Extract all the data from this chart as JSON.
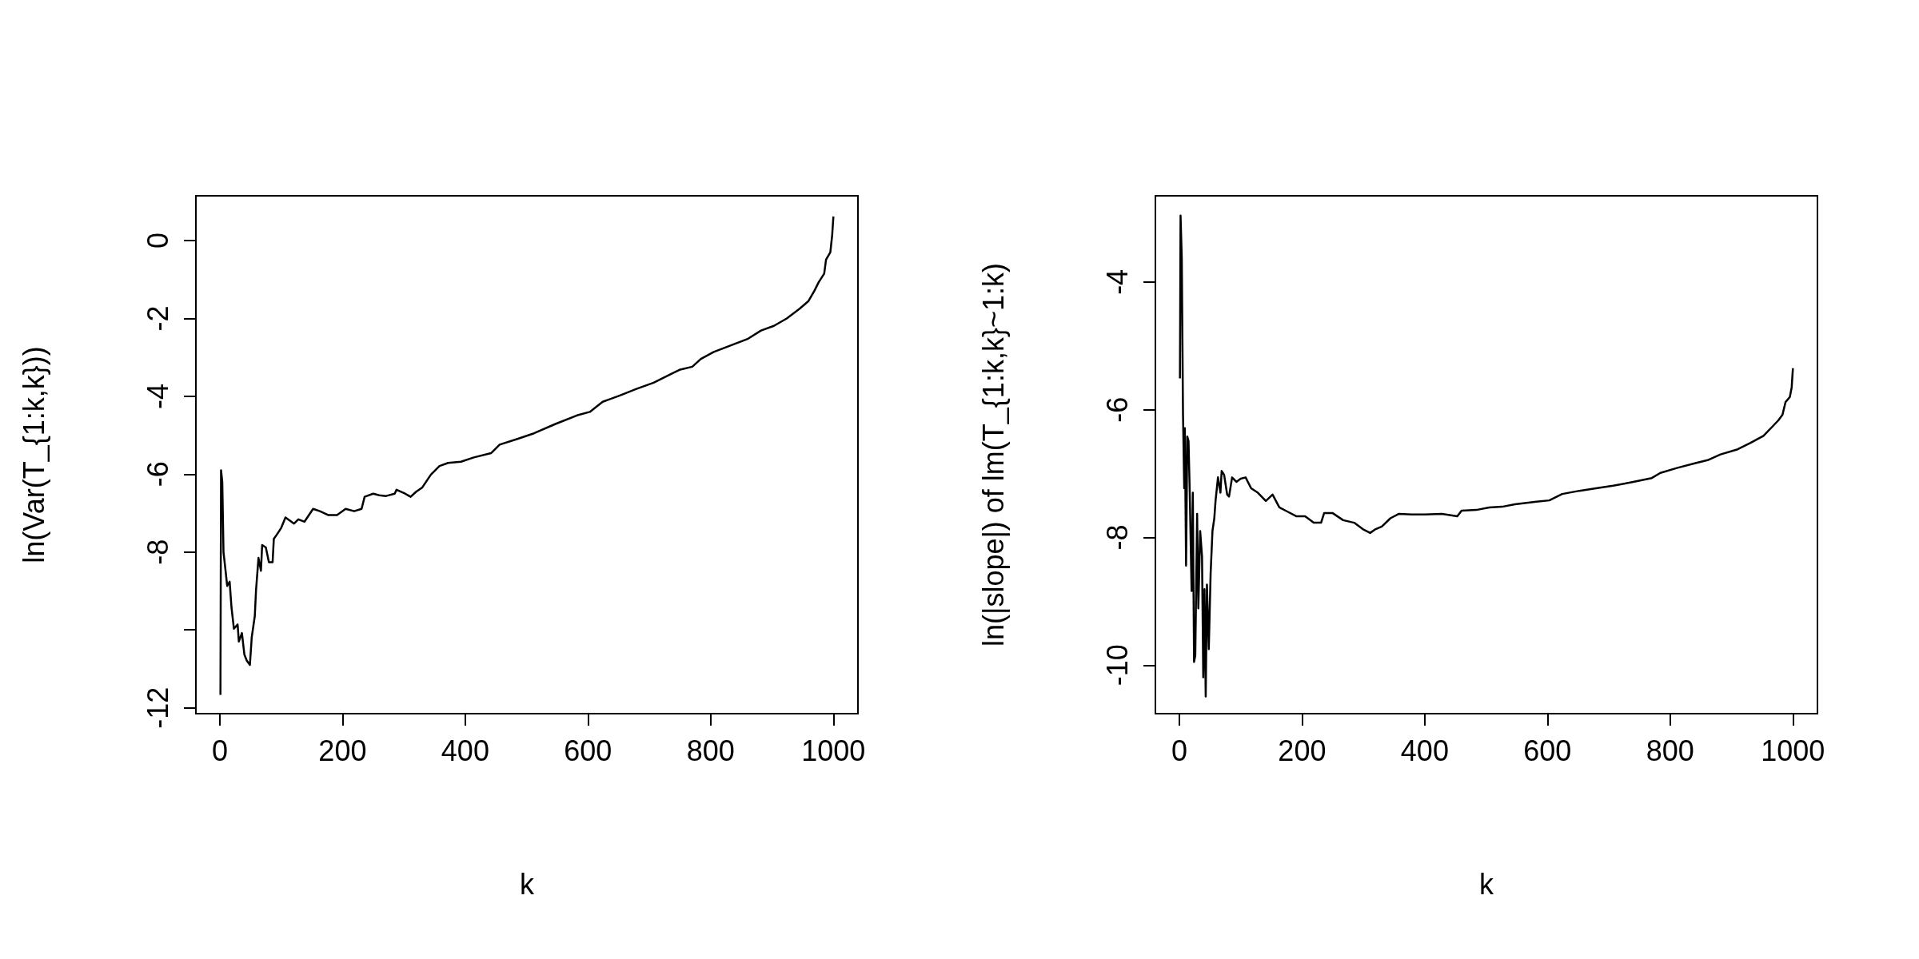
{
  "chart_data": [
    {
      "type": "line",
      "xlabel": "k",
      "ylabel": "ln(Var(T_{1:k,k}))",
      "color": "#000000",
      "grid": false,
      "xlim": [
        -39,
        1040
      ],
      "ylim": [
        -12.15,
        1.15
      ],
      "xticks": [
        0,
        200,
        400,
        600,
        800,
        1000
      ],
      "yticks": [
        0,
        -2,
        -4,
        -6,
        -8,
        {
          "value": -10,
          "label": null
        },
        -12
      ],
      "x": [
        1,
        2,
        4,
        6,
        9,
        12,
        16,
        19,
        23,
        29,
        31,
        36,
        40,
        44,
        49,
        52,
        57,
        59,
        63,
        67,
        69,
        75,
        80,
        86,
        88,
        93,
        100,
        107,
        121,
        128,
        138,
        152,
        163,
        177,
        191,
        205,
        219,
        231,
        236,
        250,
        260,
        271,
        285,
        288,
        302,
        311,
        320,
        330,
        344,
        358,
        372,
        393,
        414,
        442,
        456,
        484,
        512,
        547,
        582,
        603,
        624,
        652,
        679,
        707,
        735,
        749,
        770,
        784,
        805,
        833,
        861,
        882,
        903,
        924,
        945,
        959,
        969,
        976,
        985,
        988,
        995,
        998,
        1000
      ],
      "values": [
        -11.67,
        -5.9,
        -6.2,
        -8.0,
        -8.43,
        -8.87,
        -8.76,
        -9.42,
        -9.97,
        -9.86,
        -10.3,
        -10.08,
        -10.63,
        -10.79,
        -10.9,
        -10.19,
        -9.64,
        -8.98,
        -8.15,
        -8.48,
        -7.82,
        -7.88,
        -8.26,
        -8.26,
        -7.66,
        -7.55,
        -7.38,
        -7.11,
        -7.27,
        -7.16,
        -7.22,
        -6.89,
        -6.95,
        -7.05,
        -7.05,
        -6.89,
        -6.95,
        -6.89,
        -6.58,
        -6.5,
        -6.54,
        -6.56,
        -6.5,
        -6.4,
        -6.5,
        -6.58,
        -6.45,
        -6.34,
        -6.01,
        -5.79,
        -5.71,
        -5.68,
        -5.57,
        -5.46,
        -5.24,
        -5.1,
        -4.95,
        -4.71,
        -4.49,
        -4.4,
        -4.14,
        -3.98,
        -3.81,
        -3.65,
        -3.43,
        -3.32,
        -3.24,
        -3.04,
        -2.86,
        -2.69,
        -2.52,
        -2.31,
        -2.19,
        -2.0,
        -1.75,
        -1.56,
        -1.29,
        -1.07,
        -0.85,
        -0.49,
        -0.3,
        0.14,
        0.62
      ]
    },
    {
      "type": "line",
      "xlabel": "k",
      "ylabel": "ln(|slope|) of lm(T_{1:k,k}~1:k)",
      "color": "#000000",
      "grid": false,
      "xlim": [
        -39,
        1040
      ],
      "ylim": [
        -10.76,
        -2.65
      ],
      "xticks": [
        0,
        200,
        400,
        600,
        800,
        1000
      ],
      "yticks": [
        -4,
        -6,
        -8,
        -10
      ],
      "x": [
        1,
        2,
        4,
        6,
        8,
        9,
        11,
        13,
        15,
        17,
        20,
        22,
        24,
        26,
        29,
        31,
        34,
        37,
        39,
        41,
        43,
        45,
        48,
        51,
        54,
        57,
        59,
        63,
        67,
        69,
        73,
        78,
        81,
        86,
        93,
        100,
        108,
        117,
        128,
        141,
        152,
        163,
        177,
        191,
        205,
        219,
        231,
        236,
        250,
        267,
        285,
        299,
        311,
        320,
        330,
        344,
        358,
        379,
        400,
        428,
        453,
        460,
        484,
        505,
        526,
        547,
        582,
        603,
        624,
        652,
        679,
        707,
        735,
        770,
        784,
        812,
        840,
        861,
        882,
        910,
        931,
        952,
        966,
        976,
        983,
        988,
        995,
        998,
        1000
      ],
      "values": [
        -5.51,
        -2.96,
        -3.63,
        -6.08,
        -7.23,
        -6.29,
        -8.44,
        -6.42,
        -6.49,
        -7.3,
        -8.84,
        -7.3,
        -9.95,
        -9.85,
        -7.63,
        -9.11,
        -7.9,
        -8.3,
        -10.19,
        -8.81,
        -10.49,
        -8.74,
        -9.75,
        -8.57,
        -7.9,
        -7.7,
        -7.43,
        -7.06,
        -7.3,
        -6.96,
        -7.02,
        -7.33,
        -7.36,
        -7.06,
        -7.13,
        -7.08,
        -7.06,
        -7.23,
        -7.3,
        -7.43,
        -7.33,
        -7.53,
        -7.6,
        -7.67,
        -7.67,
        -7.77,
        -7.77,
        -7.62,
        -7.62,
        -7.73,
        -7.77,
        -7.87,
        -7.93,
        -7.87,
        -7.83,
        -7.7,
        -7.63,
        -7.64,
        -7.64,
        -7.63,
        -7.67,
        -7.58,
        -7.57,
        -7.53,
        -7.52,
        -7.48,
        -7.44,
        -7.42,
        -7.32,
        -7.27,
        -7.23,
        -7.19,
        -7.14,
        -7.07,
        -6.99,
        -6.91,
        -6.84,
        -6.79,
        -6.7,
        -6.62,
        -6.52,
        -6.41,
        -6.27,
        -6.17,
        -6.08,
        -5.88,
        -5.8,
        -5.65,
        -5.35
      ]
    }
  ]
}
